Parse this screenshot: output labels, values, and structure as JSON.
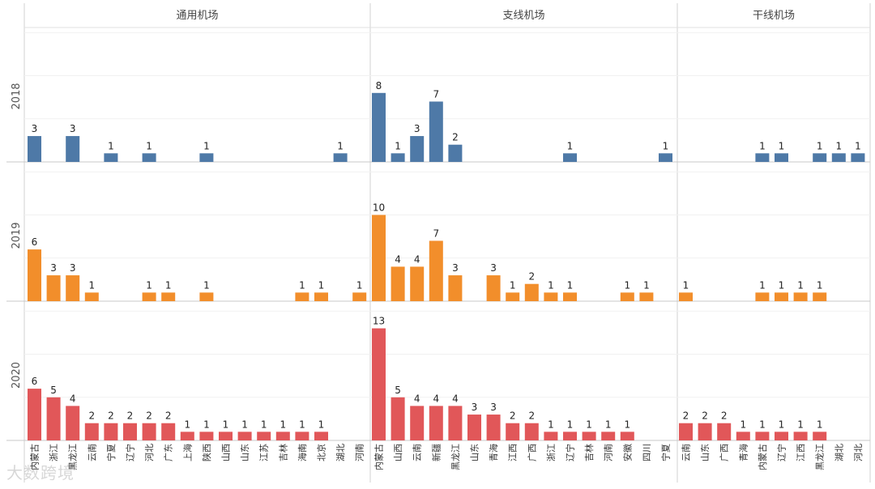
{
  "chart_data": {
    "type": "bar",
    "layout": "small-multiples grid: rows = year, columns = airport type",
    "columns": [
      "通用机场",
      "支线机场",
      "干线机场"
    ],
    "rows": [
      {
        "year": "2018",
        "color": "#4e79a7"
      },
      {
        "year": "2019",
        "color": "#f28e2b"
      },
      {
        "year": "2020",
        "color": "#e15759"
      }
    ],
    "categories": [
      [
        "内蒙古",
        "浙江",
        "黑龙江",
        "云南",
        "宁夏",
        "辽宁",
        "河北",
        "广东",
        "上海",
        "陕西",
        "山西",
        "山东",
        "江苏",
        "吉林",
        "海南",
        "北京",
        "湖北",
        "河南"
      ],
      [
        "内蒙古",
        "山西",
        "云南",
        "新疆",
        "黑龙江",
        "山东",
        "青海",
        "江西",
        "广西",
        "浙江",
        "辽宁",
        "吉林",
        "河南",
        "安徽",
        "四川",
        "宁夏"
      ],
      [
        "云南",
        "山东",
        "广西",
        "青海",
        "内蒙古",
        "辽宁",
        "江西",
        "黑龙江",
        "湖北",
        "河北"
      ]
    ],
    "values": {
      "2018": [
        [
          3,
          null,
          3,
          null,
          1,
          null,
          1,
          null,
          null,
          1,
          null,
          null,
          null,
          null,
          null,
          null,
          1,
          null
        ],
        [
          8,
          1,
          3,
          7,
          2,
          null,
          null,
          null,
          null,
          null,
          1,
          null,
          null,
          null,
          null,
          1
        ],
        [
          null,
          null,
          null,
          null,
          1,
          1,
          null,
          1,
          1,
          1
        ]
      ],
      "2019": [
        [
          6,
          3,
          3,
          1,
          null,
          null,
          1,
          1,
          null,
          1,
          null,
          null,
          null,
          null,
          1,
          1,
          null,
          1
        ],
        [
          10,
          4,
          4,
          7,
          3,
          null,
          3,
          1,
          2,
          1,
          1,
          null,
          null,
          1,
          1,
          null
        ],
        [
          1,
          null,
          null,
          null,
          1,
          1,
          1,
          1,
          null,
          null
        ]
      ],
      "2020": [
        [
          6,
          5,
          4,
          2,
          2,
          2,
          2,
          2,
          1,
          1,
          1,
          1,
          1,
          1,
          1,
          1,
          null,
          null
        ],
        [
          13,
          5,
          4,
          4,
          4,
          3,
          3,
          2,
          2,
          1,
          1,
          1,
          1,
          1,
          null,
          null
        ],
        [
          2,
          2,
          2,
          1,
          1,
          1,
          1,
          1,
          null,
          null
        ]
      ]
    },
    "ylim": [
      0,
      15
    ],
    "grid": true
  },
  "watermark": "大数跨境"
}
